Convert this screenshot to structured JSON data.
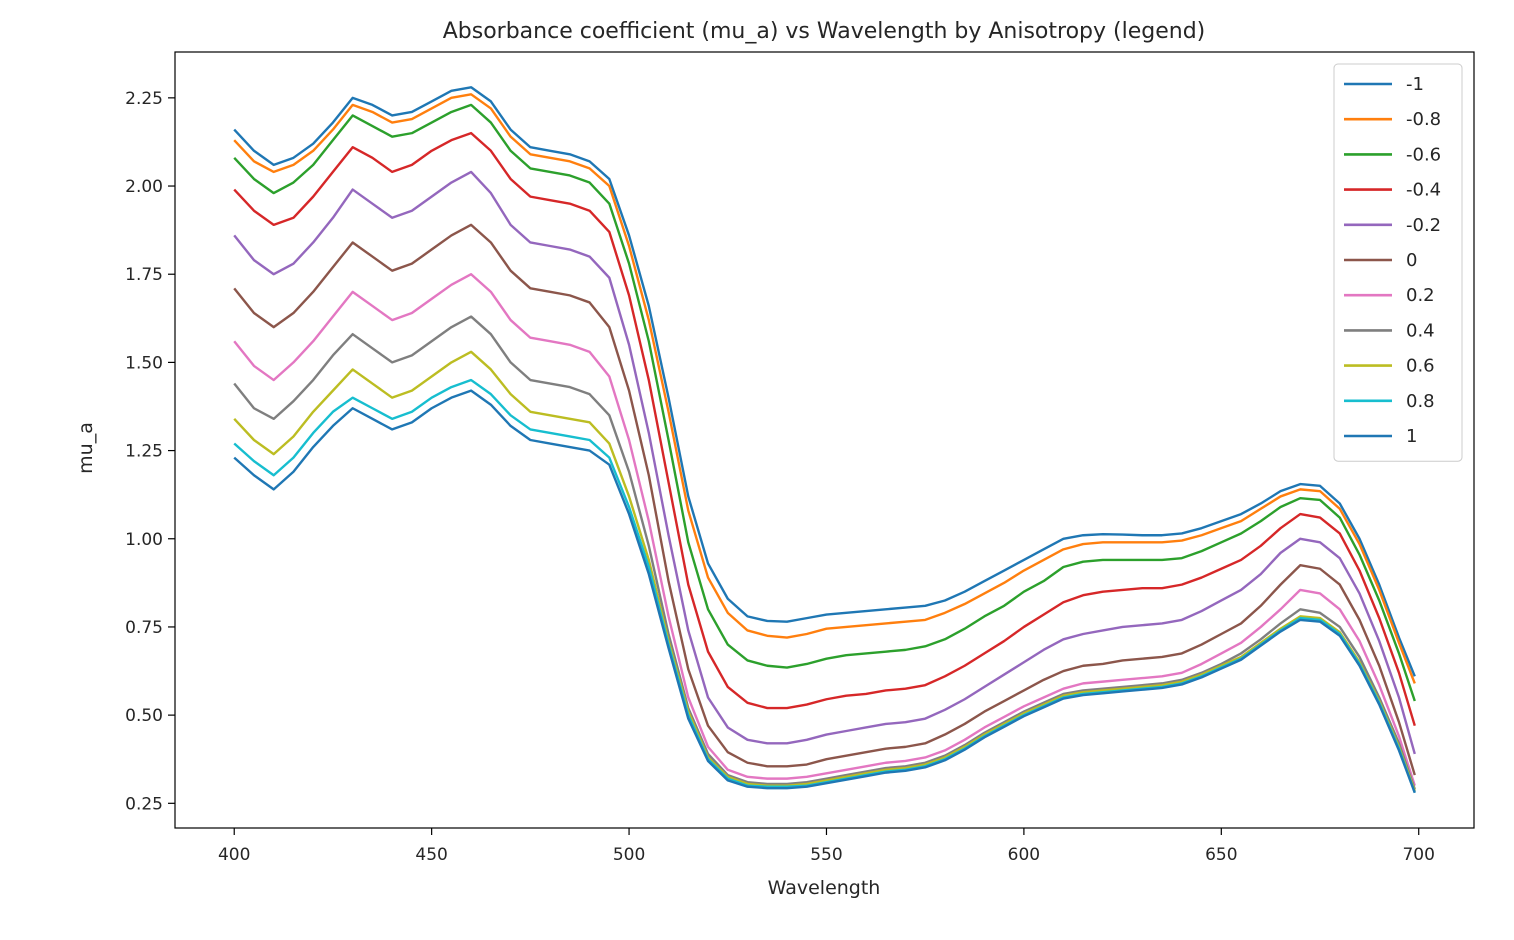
{
  "chart_data": {
    "type": "line",
    "title": "Absorbance coefficient (mu_a) vs Wavelength by Anisotropy (legend)",
    "xlabel": "Wavelength",
    "ylabel": "mu_a",
    "xlim": [
      385,
      714
    ],
    "ylim": [
      0.18,
      2.38
    ],
    "xticks": [
      400,
      450,
      500,
      550,
      600,
      650,
      700
    ],
    "yticks": [
      0.25,
      0.5,
      0.75,
      1.0,
      1.25,
      1.5,
      1.75,
      2.0,
      2.25
    ],
    "xtick_labels": [
      "400",
      "450",
      "500",
      "550",
      "600",
      "650",
      "700"
    ],
    "ytick_labels": [
      "0.25",
      "0.50",
      "0.75",
      "1.00",
      "1.25",
      "1.50",
      "1.75",
      "2.00",
      "2.25"
    ],
    "grid": false,
    "legend_position": "top-right",
    "x": [
      400,
      405,
      410,
      415,
      420,
      425,
      430,
      435,
      440,
      445,
      450,
      455,
      460,
      465,
      470,
      475,
      480,
      485,
      490,
      495,
      500,
      505,
      510,
      515,
      520,
      525,
      530,
      535,
      540,
      545,
      550,
      555,
      560,
      565,
      570,
      575,
      580,
      585,
      590,
      595,
      600,
      605,
      610,
      615,
      620,
      625,
      630,
      635,
      640,
      645,
      650,
      655,
      660,
      665,
      670,
      675,
      680,
      685,
      690,
      695,
      699
    ],
    "series": [
      {
        "name": "-1",
        "color": "#1f77b4",
        "values": [
          2.16,
          2.1,
          2.06,
          2.08,
          2.12,
          2.18,
          2.25,
          2.23,
          2.2,
          2.21,
          2.24,
          2.27,
          2.28,
          2.24,
          2.16,
          2.11,
          2.1,
          2.09,
          2.07,
          2.02,
          1.86,
          1.66,
          1.4,
          1.12,
          0.93,
          0.83,
          0.78,
          0.767,
          0.765,
          0.775,
          0.785,
          0.79,
          0.795,
          0.8,
          0.805,
          0.81,
          0.825,
          0.85,
          0.88,
          0.91,
          0.94,
          0.97,
          1.0,
          1.01,
          1.013,
          1.012,
          1.01,
          1.01,
          1.015,
          1.03,
          1.05,
          1.07,
          1.1,
          1.135,
          1.155,
          1.15,
          1.1,
          1.0,
          0.87,
          0.72,
          0.61
        ]
      },
      {
        "name": "-0.8",
        "color": "#ff7f0e",
        "values": [
          2.13,
          2.07,
          2.04,
          2.06,
          2.1,
          2.16,
          2.23,
          2.21,
          2.18,
          2.19,
          2.22,
          2.25,
          2.26,
          2.22,
          2.14,
          2.09,
          2.08,
          2.07,
          2.05,
          2.0,
          1.83,
          1.62,
          1.36,
          1.08,
          0.89,
          0.79,
          0.74,
          0.725,
          0.72,
          0.73,
          0.745,
          0.75,
          0.755,
          0.76,
          0.765,
          0.77,
          0.79,
          0.815,
          0.845,
          0.875,
          0.91,
          0.94,
          0.97,
          0.985,
          0.99,
          0.99,
          0.99,
          0.99,
          0.995,
          1.01,
          1.03,
          1.05,
          1.085,
          1.12,
          1.14,
          1.135,
          1.085,
          0.985,
          0.855,
          0.705,
          0.59
        ]
      },
      {
        "name": "-0.6",
        "color": "#2ca02c",
        "values": [
          2.08,
          2.02,
          1.98,
          2.01,
          2.06,
          2.13,
          2.2,
          2.17,
          2.14,
          2.15,
          2.18,
          2.21,
          2.23,
          2.18,
          2.1,
          2.05,
          2.04,
          2.03,
          2.01,
          1.95,
          1.78,
          1.56,
          1.28,
          0.99,
          0.8,
          0.7,
          0.655,
          0.64,
          0.635,
          0.645,
          0.66,
          0.67,
          0.675,
          0.68,
          0.685,
          0.695,
          0.715,
          0.745,
          0.78,
          0.81,
          0.85,
          0.88,
          0.92,
          0.935,
          0.94,
          0.94,
          0.94,
          0.94,
          0.945,
          0.965,
          0.99,
          1.015,
          1.05,
          1.09,
          1.115,
          1.11,
          1.06,
          0.955,
          0.825,
          0.675,
          0.54
        ]
      },
      {
        "name": "-0.4",
        "color": "#d62728",
        "values": [
          1.99,
          1.93,
          1.89,
          1.91,
          1.97,
          2.04,
          2.11,
          2.08,
          2.04,
          2.06,
          2.1,
          2.13,
          2.15,
          2.1,
          2.02,
          1.97,
          1.96,
          1.95,
          1.93,
          1.87,
          1.69,
          1.45,
          1.16,
          0.87,
          0.68,
          0.58,
          0.535,
          0.52,
          0.52,
          0.53,
          0.545,
          0.555,
          0.56,
          0.57,
          0.575,
          0.585,
          0.61,
          0.64,
          0.675,
          0.71,
          0.75,
          0.785,
          0.82,
          0.84,
          0.85,
          0.855,
          0.86,
          0.86,
          0.87,
          0.89,
          0.915,
          0.94,
          0.98,
          1.03,
          1.07,
          1.06,
          1.015,
          0.91,
          0.775,
          0.62,
          0.47
        ]
      },
      {
        "name": "-0.2",
        "color": "#9467bd",
        "values": [
          1.86,
          1.79,
          1.75,
          1.78,
          1.84,
          1.91,
          1.99,
          1.95,
          1.91,
          1.93,
          1.97,
          2.01,
          2.04,
          1.98,
          1.89,
          1.84,
          1.83,
          1.82,
          1.8,
          1.74,
          1.55,
          1.3,
          1.01,
          0.74,
          0.55,
          0.465,
          0.43,
          0.42,
          0.42,
          0.43,
          0.445,
          0.455,
          0.465,
          0.475,
          0.48,
          0.49,
          0.515,
          0.545,
          0.58,
          0.615,
          0.65,
          0.685,
          0.715,
          0.73,
          0.74,
          0.75,
          0.755,
          0.76,
          0.77,
          0.795,
          0.825,
          0.855,
          0.9,
          0.96,
          1.0,
          0.99,
          0.945,
          0.845,
          0.71,
          0.55,
          0.39
        ]
      },
      {
        "name": "0",
        "color": "#8c564b",
        "values": [
          1.71,
          1.64,
          1.6,
          1.64,
          1.7,
          1.77,
          1.84,
          1.8,
          1.76,
          1.78,
          1.82,
          1.86,
          1.89,
          1.84,
          1.76,
          1.71,
          1.7,
          1.69,
          1.67,
          1.6,
          1.42,
          1.18,
          0.88,
          0.63,
          0.47,
          0.395,
          0.365,
          0.355,
          0.355,
          0.36,
          0.375,
          0.385,
          0.395,
          0.405,
          0.41,
          0.42,
          0.445,
          0.475,
          0.51,
          0.54,
          0.57,
          0.6,
          0.625,
          0.64,
          0.645,
          0.655,
          0.66,
          0.665,
          0.675,
          0.7,
          0.73,
          0.76,
          0.81,
          0.87,
          0.925,
          0.915,
          0.87,
          0.77,
          0.64,
          0.48,
          0.33
        ]
      },
      {
        "name": "0.2",
        "color": "#e377c2",
        "values": [
          1.56,
          1.49,
          1.45,
          1.5,
          1.56,
          1.63,
          1.7,
          1.66,
          1.62,
          1.64,
          1.68,
          1.72,
          1.75,
          1.7,
          1.62,
          1.57,
          1.56,
          1.55,
          1.53,
          1.46,
          1.28,
          1.05,
          0.78,
          0.55,
          0.41,
          0.345,
          0.325,
          0.32,
          0.32,
          0.325,
          0.335,
          0.345,
          0.355,
          0.365,
          0.37,
          0.38,
          0.4,
          0.43,
          0.465,
          0.495,
          0.525,
          0.55,
          0.575,
          0.59,
          0.595,
          0.6,
          0.605,
          0.61,
          0.62,
          0.645,
          0.675,
          0.705,
          0.75,
          0.8,
          0.855,
          0.845,
          0.8,
          0.71,
          0.585,
          0.44,
          0.3
        ]
      },
      {
        "name": "0.4",
        "color": "#7f7f7f",
        "values": [
          1.44,
          1.37,
          1.34,
          1.39,
          1.45,
          1.52,
          1.58,
          1.54,
          1.5,
          1.52,
          1.56,
          1.6,
          1.63,
          1.58,
          1.5,
          1.45,
          1.44,
          1.43,
          1.41,
          1.35,
          1.19,
          0.98,
          0.73,
          0.52,
          0.39,
          0.33,
          0.31,
          0.305,
          0.305,
          0.31,
          0.32,
          0.33,
          0.34,
          0.35,
          0.355,
          0.365,
          0.385,
          0.415,
          0.45,
          0.48,
          0.51,
          0.535,
          0.56,
          0.57,
          0.575,
          0.58,
          0.585,
          0.59,
          0.6,
          0.62,
          0.645,
          0.675,
          0.715,
          0.76,
          0.8,
          0.79,
          0.75,
          0.665,
          0.55,
          0.42,
          0.29
        ]
      },
      {
        "name": "0.6",
        "color": "#bcbd22",
        "values": [
          1.34,
          1.28,
          1.24,
          1.29,
          1.36,
          1.42,
          1.48,
          1.44,
          1.4,
          1.42,
          1.46,
          1.5,
          1.53,
          1.48,
          1.41,
          1.36,
          1.35,
          1.34,
          1.33,
          1.27,
          1.12,
          0.94,
          0.71,
          0.51,
          0.38,
          0.325,
          0.305,
          0.3,
          0.3,
          0.305,
          0.315,
          0.325,
          0.335,
          0.345,
          0.35,
          0.36,
          0.38,
          0.41,
          0.445,
          0.475,
          0.505,
          0.53,
          0.555,
          0.565,
          0.57,
          0.575,
          0.58,
          0.585,
          0.595,
          0.615,
          0.64,
          0.665,
          0.705,
          0.745,
          0.78,
          0.775,
          0.735,
          0.65,
          0.54,
          0.41,
          0.285
        ]
      },
      {
        "name": "0.8",
        "color": "#17becf",
        "values": [
          1.27,
          1.22,
          1.18,
          1.23,
          1.3,
          1.36,
          1.4,
          1.37,
          1.34,
          1.36,
          1.4,
          1.43,
          1.45,
          1.41,
          1.35,
          1.31,
          1.3,
          1.29,
          1.28,
          1.23,
          1.09,
          0.92,
          0.7,
          0.5,
          0.375,
          0.32,
          0.3,
          0.297,
          0.297,
          0.3,
          0.31,
          0.32,
          0.33,
          0.34,
          0.345,
          0.355,
          0.375,
          0.405,
          0.44,
          0.47,
          0.5,
          0.525,
          0.55,
          0.56,
          0.565,
          0.57,
          0.575,
          0.58,
          0.59,
          0.61,
          0.635,
          0.66,
          0.7,
          0.74,
          0.775,
          0.77,
          0.73,
          0.645,
          0.535,
          0.405,
          0.28
        ]
      },
      {
        "name": "1",
        "color": "#1f77b4",
        "values": [
          1.23,
          1.18,
          1.14,
          1.19,
          1.26,
          1.32,
          1.37,
          1.34,
          1.31,
          1.33,
          1.37,
          1.4,
          1.42,
          1.38,
          1.32,
          1.28,
          1.27,
          1.26,
          1.25,
          1.21,
          1.07,
          0.9,
          0.69,
          0.49,
          0.37,
          0.315,
          0.297,
          0.293,
          0.293,
          0.297,
          0.307,
          0.317,
          0.327,
          0.337,
          0.342,
          0.352,
          0.372,
          0.402,
          0.437,
          0.467,
          0.497,
          0.522,
          0.547,
          0.557,
          0.562,
          0.567,
          0.572,
          0.577,
          0.587,
          0.607,
          0.632,
          0.657,
          0.697,
          0.737,
          0.77,
          0.765,
          0.725,
          0.64,
          0.53,
          0.4,
          0.28
        ]
      }
    ]
  }
}
